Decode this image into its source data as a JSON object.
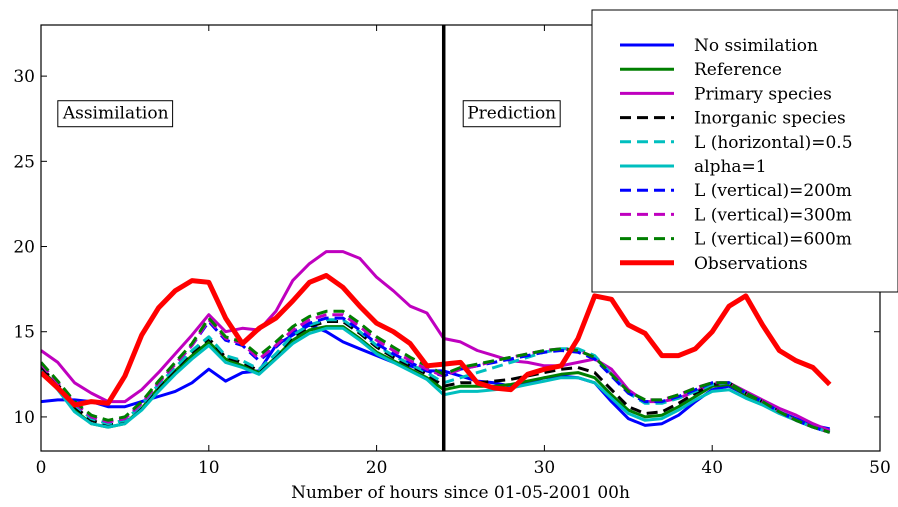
{
  "chart_data": {
    "type": "line",
    "title": "",
    "xlabel": "Number of hours since 01-05-2001 00h",
    "ylabel": "",
    "xlim": [
      0,
      50
    ],
    "ylim": [
      8,
      33
    ],
    "xticks": [
      0,
      10,
      20,
      30,
      40,
      50
    ],
    "yticks": [
      10,
      15,
      20,
      25,
      30
    ],
    "xtick_labels": [
      "0",
      "10",
      "20",
      "30",
      "40",
      "50"
    ],
    "ytick_labels": [
      "10",
      "15",
      "20",
      "25",
      "30"
    ],
    "grid": false,
    "legend_position": "top-right",
    "divider_x": 24,
    "annotations": [
      {
        "text": "Assimilation",
        "x": 1.3,
        "y": 27.5
      },
      {
        "text": "Prediction",
        "x": 25.4,
        "y": 27.5
      }
    ],
    "x": [
      0,
      1,
      2,
      3,
      4,
      5,
      6,
      7,
      8,
      9,
      10,
      11,
      12,
      13,
      14,
      15,
      16,
      17,
      18,
      19,
      20,
      21,
      22,
      23,
      24,
      25,
      26,
      27,
      28,
      29,
      30,
      31,
      32,
      33,
      34,
      35,
      36,
      37,
      38,
      39,
      40,
      41,
      42,
      43,
      44,
      45,
      46,
      47
    ],
    "series": [
      {
        "name": "No ssimilation",
        "color": "#0000ff",
        "dash": "solid",
        "width": 3,
        "values": [
          10.9,
          11.0,
          11.0,
          10.9,
          10.6,
          10.6,
          10.9,
          11.2,
          11.5,
          12.0,
          12.8,
          12.1,
          12.6,
          12.7,
          14.2,
          14.8,
          15.4,
          15.0,
          14.4,
          14.0,
          13.6,
          13.2,
          13.0,
          12.7,
          12.7,
          12.4,
          12.1,
          12.0,
          11.8,
          12.0,
          12.3,
          12.4,
          12.3,
          12.0,
          10.9,
          9.9,
          9.5,
          9.6,
          10.1,
          10.9,
          11.6,
          11.8,
          11.3,
          10.8,
          10.3,
          9.9,
          9.5,
          9.3
        ]
      },
      {
        "name": "Reference",
        "color": "#007f00",
        "dash": "solid",
        "width": 3,
        "values": [
          12.8,
          11.8,
          10.4,
          9.6,
          9.4,
          9.6,
          10.5,
          11.7,
          12.7,
          13.6,
          14.4,
          13.4,
          13.0,
          12.6,
          13.5,
          14.5,
          15.1,
          15.3,
          15.3,
          14.6,
          13.8,
          13.3,
          12.8,
          12.3,
          11.6,
          11.8,
          11.8,
          11.8,
          11.9,
          12.1,
          12.3,
          12.5,
          12.6,
          12.3,
          11.3,
          10.4,
          10.0,
          10.1,
          10.6,
          11.2,
          11.8,
          11.9,
          11.3,
          10.8,
          10.3,
          9.8,
          9.4,
          9.1
        ]
      },
      {
        "name": "Primary species",
        "color": "#bf00bf",
        "dash": "solid",
        "width": 3,
        "values": [
          13.9,
          13.2,
          12.0,
          11.4,
          10.9,
          10.9,
          11.6,
          12.6,
          13.7,
          14.8,
          16.0,
          15.0,
          15.2,
          15.1,
          16.2,
          18.0,
          19.0,
          19.7,
          19.7,
          19.3,
          18.2,
          17.4,
          16.5,
          16.1,
          14.6,
          14.4,
          13.9,
          13.6,
          13.3,
          13.2,
          13.0,
          13.0,
          13.2,
          13.4,
          12.8,
          11.6,
          10.9,
          10.9,
          11.1,
          11.5,
          11.9,
          12.0,
          11.5,
          11.0,
          10.5,
          10.1,
          9.6,
          9.2
        ]
      },
      {
        "name": "Inorganic species",
        "color": "#000000",
        "dash": "dash",
        "width": 3,
        "values": [
          12.9,
          11.9,
          10.6,
          9.8,
          9.5,
          9.7,
          10.6,
          11.8,
          12.8,
          13.8,
          14.6,
          13.5,
          13.2,
          12.7,
          13.6,
          14.7,
          15.3,
          15.6,
          15.6,
          14.9,
          14.1,
          13.5,
          13.0,
          12.5,
          11.8,
          12.0,
          12.0,
          12.1,
          12.2,
          12.4,
          12.6,
          12.8,
          12.9,
          12.6,
          11.6,
          10.6,
          10.2,
          10.3,
          10.8,
          11.4,
          11.9,
          12.0,
          11.4,
          10.9,
          10.3,
          9.8,
          9.4,
          9.1
        ]
      },
      {
        "name": "L (horizontal)=0.5",
        "color": "#00bfbf",
        "dash": "dash",
        "width": 3,
        "values": [
          13.1,
          12.0,
          10.7,
          9.9,
          9.6,
          9.8,
          10.7,
          11.9,
          12.9,
          13.9,
          14.7,
          13.6,
          13.3,
          12.8,
          13.7,
          14.8,
          15.4,
          15.7,
          15.7,
          15.0,
          14.2,
          13.6,
          13.1,
          12.6,
          12.0,
          12.3,
          12.6,
          12.9,
          13.2,
          13.5,
          13.8,
          14.0,
          14.0,
          13.6,
          12.5,
          11.4,
          10.8,
          10.8,
          11.1,
          11.5,
          11.9,
          12.0,
          11.4,
          10.9,
          10.3,
          9.8,
          9.4,
          9.1
        ]
      },
      {
        "name": "alpha=1",
        "color": "#00bfbf",
        "dash": "solid",
        "width": 3,
        "values": [
          12.7,
          11.6,
          10.3,
          9.6,
          9.4,
          9.6,
          10.4,
          11.5,
          12.5,
          13.4,
          14.2,
          13.2,
          12.9,
          12.5,
          13.4,
          14.3,
          14.9,
          15.2,
          15.2,
          14.5,
          13.7,
          13.2,
          12.7,
          12.2,
          11.3,
          11.5,
          11.5,
          11.6,
          11.7,
          11.9,
          12.1,
          12.3,
          12.3,
          12.0,
          11.1,
          10.2,
          9.8,
          9.9,
          10.4,
          11.0,
          11.5,
          11.6,
          11.1,
          10.7,
          10.2,
          9.8,
          9.4,
          9.1
        ]
      },
      {
        "name": "L (vertical)=200m",
        "color": "#0000ff",
        "dash": "dash",
        "width": 3,
        "values": [
          13.1,
          12.0,
          10.8,
          10.0,
          9.7,
          9.9,
          10.8,
          12.0,
          13.1,
          14.2,
          15.6,
          14.5,
          14.2,
          13.3,
          14.1,
          15.0,
          15.5,
          15.8,
          15.8,
          15.1,
          14.3,
          13.7,
          13.2,
          12.7,
          12.4,
          12.8,
          13.0,
          13.2,
          13.4,
          13.6,
          13.8,
          13.9,
          13.8,
          13.4,
          12.4,
          11.4,
          10.9,
          10.9,
          11.2,
          11.6,
          12.0,
          12.0,
          11.4,
          10.9,
          10.3,
          9.8,
          9.4,
          9.1
        ]
      },
      {
        "name": "L (vertical)=300m",
        "color": "#bf00bf",
        "dash": "dash",
        "width": 3,
        "values": [
          13.1,
          12.0,
          10.8,
          10.0,
          9.7,
          9.9,
          10.8,
          12.0,
          13.1,
          14.2,
          15.7,
          14.6,
          14.3,
          13.4,
          14.2,
          15.1,
          15.7,
          16.0,
          16.0,
          15.3,
          14.5,
          13.9,
          13.3,
          12.8,
          12.4,
          12.8,
          13.0,
          13.3,
          13.5,
          13.7,
          13.9,
          14.0,
          13.9,
          13.5,
          12.5,
          11.5,
          11.0,
          11.0,
          11.3,
          11.7,
          12.0,
          12.0,
          11.4,
          10.9,
          10.3,
          9.8,
          9.4,
          9.1
        ]
      },
      {
        "name": "L (vertical)=600m",
        "color": "#007f00",
        "dash": "dash",
        "width": 3,
        "values": [
          13.2,
          12.1,
          10.9,
          10.1,
          9.8,
          10.0,
          10.9,
          12.1,
          13.2,
          14.3,
          15.8,
          14.7,
          14.4,
          13.6,
          14.4,
          15.3,
          15.9,
          16.2,
          16.2,
          15.5,
          14.7,
          14.1,
          13.5,
          13.0,
          12.5,
          12.9,
          13.1,
          13.3,
          13.5,
          13.7,
          13.9,
          14.0,
          13.9,
          13.5,
          12.5,
          11.5,
          11.0,
          11.0,
          11.3,
          11.7,
          12.0,
          12.0,
          11.4,
          10.9,
          10.3,
          9.8,
          9.4,
          9.1
        ]
      },
      {
        "name": "Observations",
        "color": "#ff0000",
        "dash": "solid",
        "width": 5,
        "values": [
          12.6,
          11.7,
          10.7,
          10.9,
          10.8,
          12.4,
          14.8,
          16.4,
          17.4,
          18.0,
          17.9,
          15.8,
          14.3,
          15.2,
          15.8,
          16.8,
          17.9,
          18.3,
          17.6,
          16.5,
          15.5,
          15.0,
          14.3,
          13.0,
          13.1,
          13.2,
          12.0,
          11.7,
          11.6,
          12.5,
          12.8,
          13.0,
          14.6,
          17.1,
          16.9,
          15.4,
          14.9,
          13.6,
          13.6,
          14.0,
          15.0,
          16.5,
          17.1,
          15.4,
          13.9,
          13.3,
          12.9,
          11.9
        ]
      }
    ]
  }
}
